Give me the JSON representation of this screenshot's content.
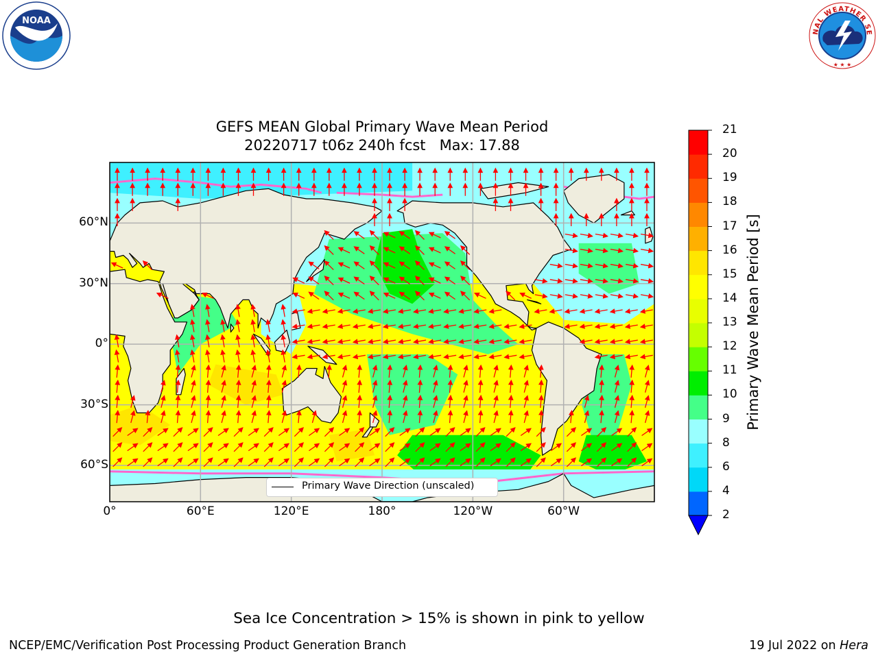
{
  "header": {
    "left_logo": {
      "text": "NOAA",
      "ring_text": "NATIONAL OCEANIC AND ATMOSPHERIC ADMINISTRATION · U.S. DEPARTMENT OF COMMERCE"
    },
    "right_logo": {
      "ring_text": "NATIONAL WEATHER SERVICE"
    }
  },
  "title": {
    "line1": "GEFS MEAN Global Primary Wave Mean Period",
    "line2": "20220717 t06z 240h fcst   Max: 17.88"
  },
  "map": {
    "type": "filled-contour map with direction arrows",
    "projection": "plate carree",
    "lon_range": [
      0,
      360
    ],
    "lat_range": [
      -78,
      90
    ],
    "grid": true,
    "lat_ticks": [
      {
        "value": 60,
        "label": "60°N"
      },
      {
        "value": 30,
        "label": "30°N"
      },
      {
        "value": 0,
        "label": "0°"
      },
      {
        "value": -30,
        "label": "30°S"
      },
      {
        "value": -60,
        "label": "60°S"
      }
    ],
    "lon_ticks": [
      {
        "value": 0,
        "label": "0°"
      },
      {
        "value": 60,
        "label": "60°E"
      },
      {
        "value": 120,
        "label": "120°E"
      },
      {
        "value": 180,
        "label": "180°"
      },
      {
        "value": 240,
        "label": "120°W"
      },
      {
        "value": 300,
        "label": "60°W"
      }
    ],
    "colors": {
      "land": "#efedde",
      "coast": "#000000",
      "grid": "#b0b0b0",
      "arrow": "#ff0000",
      "ice_edge": "#ff66cc"
    }
  },
  "legend": {
    "label": "Primary Wave Direction (unscaled)",
    "placement": "lower-center"
  },
  "colorbar": {
    "title": "Primary Wave Mean Period [s]",
    "ticks": [
      "21",
      "20",
      "19",
      "18",
      "17",
      "16",
      "15",
      "14",
      "13",
      "12",
      "11",
      "10",
      "9",
      "8",
      "6",
      "4",
      "2"
    ],
    "levels": [
      2,
      4,
      6,
      8,
      9,
      10,
      11,
      12,
      13,
      14,
      15,
      16,
      17,
      18,
      19,
      20,
      21
    ],
    "colors": [
      "#0066ff",
      "#00d8f8",
      "#3ff0ff",
      "#99ffff",
      "#44ff88",
      "#00ee00",
      "#66ff00",
      "#c4ff00",
      "#e8ff00",
      "#ffff00",
      "#ffe600",
      "#ffb000",
      "#ff8800",
      "#ff5500",
      "#ff2a00",
      "#ff0000"
    ],
    "extend_low_color": "#0000ff"
  },
  "footer": {
    "ice_note": "Sea Ice Concentration > 15% is shown in pink to yellow",
    "left": "NCEP/EMC/Verification Post Processing Product Generation Branch",
    "right_date": "19 Jul 2022 on ",
    "right_host": "Hera"
  }
}
